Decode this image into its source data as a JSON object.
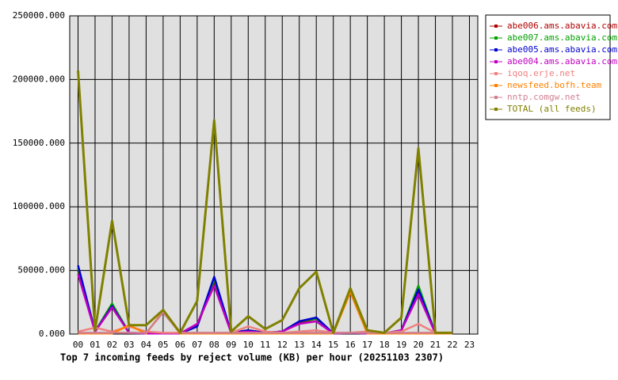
{
  "chart_data": {
    "type": "line",
    "title": "Top 7 incoming feeds by reject volume (KB) per hour (20251103 2307)",
    "categories": [
      "00",
      "01",
      "02",
      "03",
      "04",
      "05",
      "06",
      "07",
      "08",
      "09",
      "10",
      "11",
      "12",
      "13",
      "14",
      "15",
      "16",
      "17",
      "18",
      "19",
      "20",
      "21",
      "22",
      "23"
    ],
    "ylim": [
      0,
      250000
    ],
    "yticks": [
      {
        "value": 0,
        "label": "0.000"
      },
      {
        "value": 50000,
        "label": "50000.000"
      },
      {
        "value": 100000,
        "label": "100000.000"
      },
      {
        "value": 150000,
        "label": "150000.000"
      },
      {
        "value": 200000,
        "label": "200000.000"
      },
      {
        "value": 250000,
        "label": "250000.000"
      }
    ],
    "grid": true,
    "legend": "right",
    "series": [
      {
        "name": "abe006.ams.abavia.com",
        "color": "#b00000",
        "values": [
          50000,
          2000,
          22000,
          1000,
          500,
          500,
          500,
          6000,
          42000,
          1000,
          3000,
          1000,
          2000,
          9000,
          12000,
          500,
          1000,
          500,
          500,
          3000,
          33000,
          500,
          500,
          null
        ]
      },
      {
        "name": "abe007.ams.abavia.com",
        "color": "#00a000",
        "values": [
          52000,
          2000,
          24000,
          1000,
          500,
          500,
          500,
          7000,
          43000,
          1000,
          3000,
          1000,
          2000,
          10000,
          12000,
          500,
          1000,
          500,
          500,
          3000,
          38000,
          500,
          500,
          null
        ]
      },
      {
        "name": "abe005.ams.abavia.com",
        "color": "#0000d0",
        "values": [
          54000,
          2000,
          22000,
          1000,
          500,
          500,
          500,
          6000,
          45000,
          1000,
          3000,
          1000,
          2000,
          10000,
          13000,
          500,
          1000,
          500,
          500,
          3000,
          35000,
          500,
          500,
          null
        ]
      },
      {
        "name": "abe004.ams.abavia.com",
        "color": "#c000c0",
        "values": [
          47000,
          2000,
          21000,
          1000,
          500,
          500,
          500,
          8000,
          38000,
          1000,
          2000,
          1000,
          2000,
          8000,
          10000,
          500,
          1000,
          500,
          500,
          3000,
          31000,
          500,
          500,
          null
        ]
      },
      {
        "name": "iqoq.erje.net",
        "color": "#f08080",
        "values": [
          2000,
          5000,
          2000,
          6000,
          2000,
          1000,
          1000,
          1000,
          1000,
          1000,
          6000,
          2000,
          1000,
          2000,
          3000,
          1000,
          1000,
          2000,
          1000,
          2000,
          8000,
          1000,
          1000,
          null
        ]
      },
      {
        "name": "newsfeed.bofh.team",
        "color": "#ff8000",
        "values": [
          500,
          500,
          500,
          7000,
          500,
          18000,
          500,
          500,
          500,
          500,
          500,
          500,
          500,
          500,
          500,
          500,
          33000,
          500,
          500,
          500,
          500,
          500,
          500,
          null
        ]
      },
      {
        "name": "nntp.comgw.net",
        "color": "#d08090",
        "values": [
          1000,
          1000,
          1000,
          1000,
          1000,
          17000,
          1000,
          1000,
          1000,
          1000,
          1000,
          1000,
          1000,
          1000,
          1000,
          1000,
          1000,
          1000,
          1000,
          1000,
          1000,
          1000,
          1000,
          null
        ]
      },
      {
        "name": "TOTAL (all feeds)",
        "color": "#808000",
        "values": [
          207000,
          3000,
          89000,
          7000,
          7000,
          19000,
          1000,
          26000,
          168000,
          2000,
          14000,
          4000,
          11000,
          36000,
          49000,
          1000,
          36000,
          3000,
          1000,
          13000,
          146000,
          1000,
          1000,
          null
        ]
      }
    ]
  }
}
